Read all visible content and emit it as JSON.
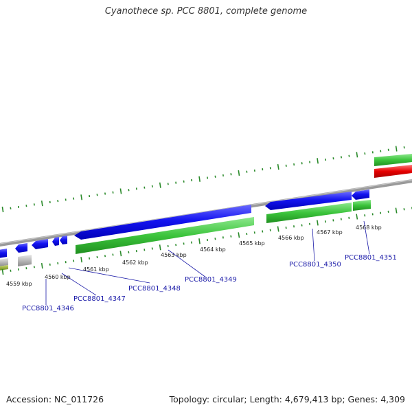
{
  "title": "Cyanothece sp. PCC 8801, complete genome",
  "footer": {
    "accession": "Accession: NC_011726",
    "summary": "Topology: circular; Length: 4,679,413 bp; Genes: 4,309"
  },
  "kbp_labels": [
    "4559 kbp",
    "4560 kbp",
    "4561 kbp",
    "4562 kbp",
    "4563 kbp",
    "4564 kbp",
    "4565 kbp",
    "4566 kbp",
    "4567 kbp",
    "4568 kbp"
  ],
  "gene_labels": [
    "PCC8801_4346",
    "PCC8801_4347",
    "PCC8801_4348",
    "PCC8801_4349",
    "PCC8801_4350",
    "PCC8801_4351"
  ],
  "colors": {
    "cds": "#0a0ae6",
    "gene": "#3cc43c",
    "rna": "#e60000",
    "other": "#b8b8b8",
    "backbone": "#8a8a8a",
    "ticks": "#2a8a2a",
    "label_line": "#1a1aa8"
  }
}
